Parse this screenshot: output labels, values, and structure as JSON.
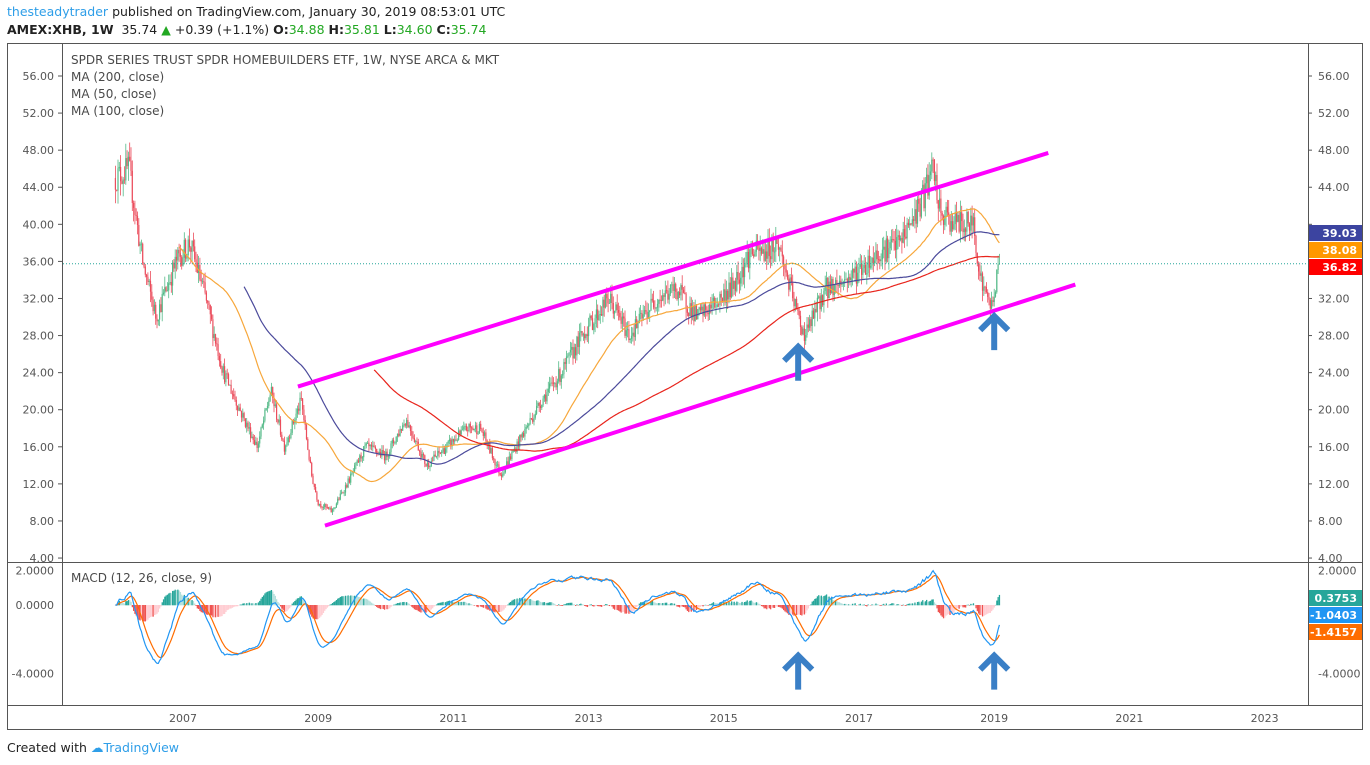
{
  "header": {
    "user": "thesteadytrader",
    "published": "published on TradingView.com, January 30, 2019 08:53:01 UTC",
    "symbol": "AMEX:XHB, 1W",
    "last": "35.74",
    "change": "+0.39 (+1.1%)",
    "o_label": "O:",
    "o": "34.88",
    "h_label": "H:",
    "h": "35.81",
    "l_label": "L:",
    "l": "34.60",
    "c_label": "C:",
    "c": "35.74"
  },
  "legend": {
    "title": "SPDR SERIES TRUST SPDR HOMEBUILDERS ETF, 1W, NYSE ARCA & MKT",
    "ma200": "MA (200, close)",
    "ma50": "MA (50, close)",
    "ma100": "MA (100, close)",
    "macd": "MACD (12, 26, close, 9)"
  },
  "footer": {
    "created": "Created with",
    "brand": "TradingView"
  },
  "colors": {
    "up": "#53b987",
    "down": "#eb4d5c",
    "ma50": "#f7a73b",
    "ma100": "#4b4a9b",
    "ma200": "#e8241c",
    "trend": "#ff00ff",
    "arrow": "#3a7fc6",
    "macd": "#2196f3",
    "signal": "#ff6d00"
  },
  "chart_data": {
    "type": "candlestick",
    "title": "SPDR SERIES TRUST SPDR HOMEBUILDERS ETF, 1W",
    "x_ticks": [
      "2007",
      "2009",
      "2011",
      "2013",
      "2015",
      "2017",
      "2019",
      "2021",
      "2023"
    ],
    "x_tick_years": [
      2007,
      2009,
      2011,
      2013,
      2015,
      2017,
      2019,
      2021,
      2023
    ],
    "xlim": [
      2005.3,
      2023.7
    ],
    "ylim": [
      3.6,
      59.6
    ],
    "y_ticks": [
      "4.00",
      "8.00",
      "12.00",
      "16.00",
      "20.00",
      "24.00",
      "28.00",
      "32.00",
      "36.00",
      "40.00",
      "44.00",
      "48.00",
      "52.00",
      "56.00"
    ],
    "price_path": [
      [
        2006.0,
        45
      ],
      [
        2006.2,
        46
      ],
      [
        2006.4,
        36
      ],
      [
        2006.6,
        30
      ],
      [
        2006.9,
        36
      ],
      [
        2007.1,
        38
      ],
      [
        2007.3,
        33
      ],
      [
        2007.6,
        24
      ],
      [
        2007.9,
        19
      ],
      [
        2008.1,
        16
      ],
      [
        2008.3,
        22
      ],
      [
        2008.5,
        16
      ],
      [
        2008.75,
        21
      ],
      [
        2008.9,
        13
      ],
      [
        2009.0,
        10
      ],
      [
        2009.2,
        9
      ],
      [
        2009.5,
        13
      ],
      [
        2009.7,
        16
      ],
      [
        2010.0,
        15
      ],
      [
        2010.3,
        19
      ],
      [
        2010.6,
        14
      ],
      [
        2010.9,
        16
      ],
      [
        2011.2,
        18
      ],
      [
        2011.4,
        18
      ],
      [
        2011.7,
        13
      ],
      [
        2012.0,
        17
      ],
      [
        2012.3,
        21
      ],
      [
        2012.6,
        24
      ],
      [
        2012.9,
        28
      ],
      [
        2013.3,
        32
      ],
      [
        2013.6,
        28
      ],
      [
        2014.0,
        32
      ],
      [
        2014.3,
        33
      ],
      [
        2014.6,
        30
      ],
      [
        2014.8,
        31
      ],
      [
        2015.1,
        33
      ],
      [
        2015.4,
        37
      ],
      [
        2015.6,
        37
      ],
      [
        2015.8,
        38
      ],
      [
        2016.1,
        30
      ],
      [
        2016.2,
        28
      ],
      [
        2016.5,
        33
      ],
      [
        2016.8,
        34
      ],
      [
        2017.0,
        35
      ],
      [
        2017.3,
        37
      ],
      [
        2017.6,
        38
      ],
      [
        2017.9,
        42
      ],
      [
        2018.1,
        46
      ],
      [
        2018.2,
        41
      ],
      [
        2018.5,
        40
      ],
      [
        2018.7,
        40
      ],
      [
        2018.8,
        34
      ],
      [
        2018.95,
        31
      ],
      [
        2019.08,
        35.74
      ]
    ],
    "last_price": 35.74,
    "ma_labels": [
      {
        "name": "MA 100",
        "value": "39.03",
        "color": "#3c44a0"
      },
      {
        "name": "MA 50",
        "value": "38.08",
        "color": "#ff9800"
      },
      {
        "name": "MA 200",
        "value": "36.82",
        "color": "#f00"
      }
    ],
    "trendlines": [
      {
        "name": "upper",
        "from": [
          2008.7,
          22.5
        ],
        "to": [
          2019.8,
          47.7
        ]
      },
      {
        "name": "lower",
        "from": [
          2009.1,
          7.5
        ],
        "to": [
          2020.2,
          33.5
        ]
      }
    ],
    "arrows_price": [
      [
        2016.1,
        25.5
      ],
      [
        2019.0,
        28.8
      ]
    ],
    "macd": {
      "ylim": [
        -5.5,
        2.3
      ],
      "y_ticks": [
        "2.0000",
        "0.0000",
        "-4.0000"
      ],
      "y_tick_values": [
        2,
        0,
        -4
      ],
      "labels": [
        {
          "name": "histogram",
          "value": "0.3753",
          "color": "#26a69a"
        },
        {
          "name": "macd",
          "value": "-1.0403",
          "color": "#2196f3"
        },
        {
          "name": "signal",
          "value": "-1.4157",
          "color": "#ff6d00"
        }
      ],
      "arrows": [
        [
          2016.1,
          -2.6
        ],
        [
          2019.0,
          -2.6
        ]
      ]
    }
  }
}
